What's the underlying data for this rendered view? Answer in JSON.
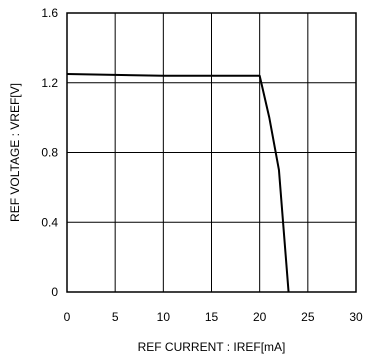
{
  "chart_data": {
    "type": "line",
    "xlabel": "REF CURRENT : IREF[mA]",
    "ylabel": "REF VOLTAGE : VREF[V]",
    "xlim": [
      0,
      30
    ],
    "ylim": [
      0,
      1.6
    ],
    "x_ticks": [
      0,
      5,
      10,
      15,
      20,
      25,
      30
    ],
    "y_ticks": [
      0,
      0.4,
      0.8,
      1.2,
      1.6
    ],
    "x_tick_labels": [
      "0",
      "5",
      "10",
      "15",
      "20",
      "25",
      "30"
    ],
    "y_tick_labels": [
      "0",
      "0.4",
      "0.8",
      "1.2",
      "1.6"
    ],
    "grid": true,
    "series": [
      {
        "x": [
          0,
          10,
          20,
          21,
          22,
          23
        ],
        "y": [
          1.25,
          1.24,
          1.24,
          1.0,
          0.7,
          0.0
        ]
      }
    ],
    "colors": {
      "line": "#000000",
      "grid": "#000000",
      "frame": "#000000"
    }
  }
}
